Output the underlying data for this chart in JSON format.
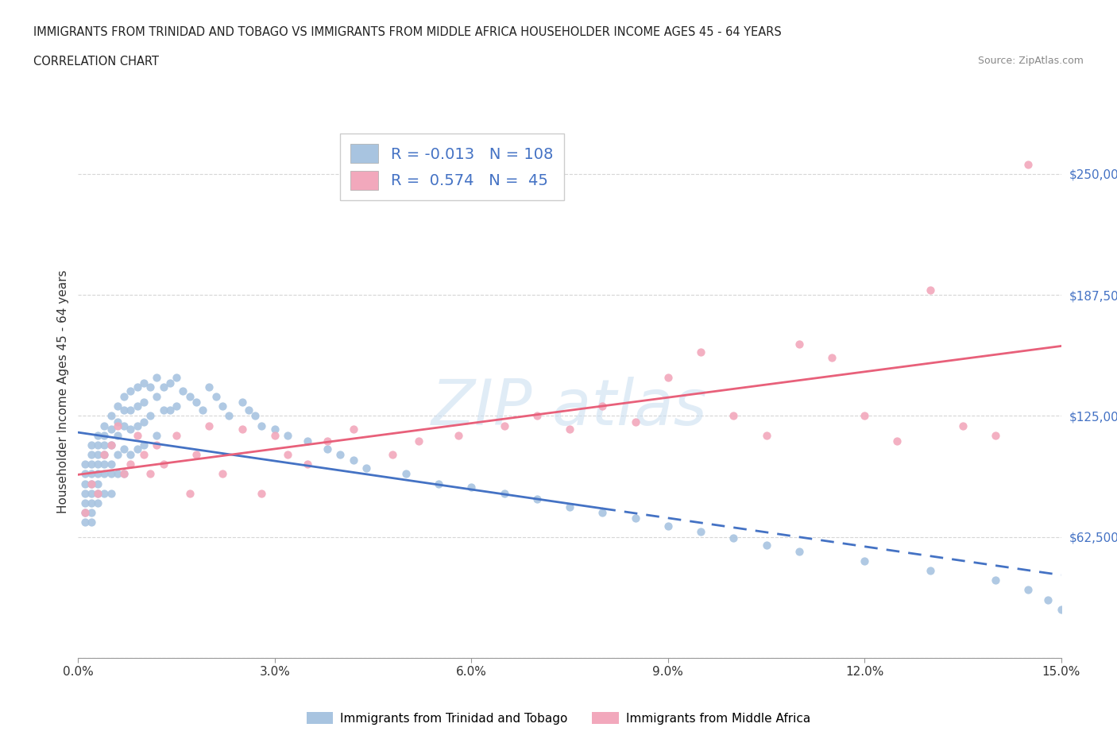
{
  "title_line1": "IMMIGRANTS FROM TRINIDAD AND TOBAGO VS IMMIGRANTS FROM MIDDLE AFRICA HOUSEHOLDER INCOME AGES 45 - 64 YEARS",
  "title_line2": "CORRELATION CHART",
  "source_text": "Source: ZipAtlas.com",
  "ylabel": "Householder Income Ages 45 - 64 years",
  "xlim": [
    0.0,
    0.15
  ],
  "ylim": [
    0,
    275000
  ],
  "yticks": [
    0,
    62500,
    125000,
    187500,
    250000
  ],
  "ytick_labels": [
    "",
    "$62,500",
    "$125,000",
    "$187,500",
    "$250,000"
  ],
  "xticks": [
    0.0,
    0.03,
    0.06,
    0.09,
    0.12,
    0.15
  ],
  "xtick_labels": [
    "0.0%",
    "3.0%",
    "6.0%",
    "9.0%",
    "12.0%",
    "15.0%"
  ],
  "series1_color": "#a8c4e0",
  "series2_color": "#f2a8bc",
  "series1_line_color": "#4472c4",
  "series2_line_color": "#e8607a",
  "R1": -0.013,
  "N1": 108,
  "R2": 0.574,
  "N2": 45,
  "legend_label1": "Immigrants from Trinidad and Tobago",
  "legend_label2": "Immigrants from Middle Africa",
  "watermark_text": "ZIP atlas",
  "background_color": "#ffffff",
  "grid_color": "#cccccc",
  "series1_x": [
    0.001,
    0.001,
    0.001,
    0.001,
    0.001,
    0.001,
    0.001,
    0.002,
    0.002,
    0.002,
    0.002,
    0.002,
    0.002,
    0.002,
    0.002,
    0.002,
    0.003,
    0.003,
    0.003,
    0.003,
    0.003,
    0.003,
    0.003,
    0.003,
    0.004,
    0.004,
    0.004,
    0.004,
    0.004,
    0.004,
    0.004,
    0.005,
    0.005,
    0.005,
    0.005,
    0.005,
    0.005,
    0.006,
    0.006,
    0.006,
    0.006,
    0.006,
    0.007,
    0.007,
    0.007,
    0.007,
    0.007,
    0.008,
    0.008,
    0.008,
    0.008,
    0.009,
    0.009,
    0.009,
    0.009,
    0.01,
    0.01,
    0.01,
    0.01,
    0.011,
    0.011,
    0.012,
    0.012,
    0.012,
    0.013,
    0.013,
    0.014,
    0.014,
    0.015,
    0.015,
    0.016,
    0.017,
    0.018,
    0.019,
    0.02,
    0.021,
    0.022,
    0.023,
    0.025,
    0.026,
    0.027,
    0.028,
    0.03,
    0.032,
    0.035,
    0.038,
    0.04,
    0.042,
    0.044,
    0.05,
    0.055,
    0.06,
    0.065,
    0.07,
    0.075,
    0.08,
    0.085,
    0.09,
    0.095,
    0.1,
    0.105,
    0.11,
    0.12,
    0.13,
    0.14,
    0.145,
    0.148,
    0.15
  ],
  "series1_y": [
    100000,
    95000,
    90000,
    85000,
    80000,
    75000,
    70000,
    110000,
    105000,
    100000,
    95000,
    90000,
    85000,
    80000,
    75000,
    70000,
    115000,
    110000,
    105000,
    100000,
    95000,
    90000,
    85000,
    80000,
    120000,
    115000,
    110000,
    105000,
    100000,
    95000,
    85000,
    125000,
    118000,
    110000,
    100000,
    95000,
    85000,
    130000,
    122000,
    115000,
    105000,
    95000,
    135000,
    128000,
    120000,
    108000,
    95000,
    138000,
    128000,
    118000,
    105000,
    140000,
    130000,
    120000,
    108000,
    142000,
    132000,
    122000,
    110000,
    140000,
    125000,
    145000,
    135000,
    115000,
    140000,
    128000,
    142000,
    128000,
    145000,
    130000,
    138000,
    135000,
    132000,
    128000,
    140000,
    135000,
    130000,
    125000,
    132000,
    128000,
    125000,
    120000,
    118000,
    115000,
    112000,
    108000,
    105000,
    102000,
    98000,
    95000,
    90000,
    88000,
    85000,
    82000,
    78000,
    75000,
    72000,
    68000,
    65000,
    62000,
    58000,
    55000,
    50000,
    45000,
    40000,
    35000,
    30000,
    25000
  ],
  "series2_x": [
    0.001,
    0.002,
    0.003,
    0.004,
    0.005,
    0.006,
    0.007,
    0.008,
    0.009,
    0.01,
    0.011,
    0.012,
    0.013,
    0.015,
    0.017,
    0.018,
    0.02,
    0.022,
    0.025,
    0.028,
    0.03,
    0.032,
    0.035,
    0.038,
    0.042,
    0.048,
    0.052,
    0.058,
    0.065,
    0.07,
    0.075,
    0.08,
    0.085,
    0.09,
    0.095,
    0.1,
    0.105,
    0.11,
    0.115,
    0.12,
    0.125,
    0.13,
    0.135,
    0.14,
    0.145
  ],
  "series2_y": [
    75000,
    90000,
    85000,
    105000,
    110000,
    120000,
    95000,
    100000,
    115000,
    105000,
    95000,
    110000,
    100000,
    115000,
    85000,
    105000,
    120000,
    95000,
    118000,
    85000,
    115000,
    105000,
    100000,
    112000,
    118000,
    105000,
    112000,
    115000,
    120000,
    125000,
    118000,
    130000,
    122000,
    145000,
    158000,
    125000,
    115000,
    162000,
    155000,
    125000,
    112000,
    190000,
    120000,
    115000,
    255000
  ]
}
